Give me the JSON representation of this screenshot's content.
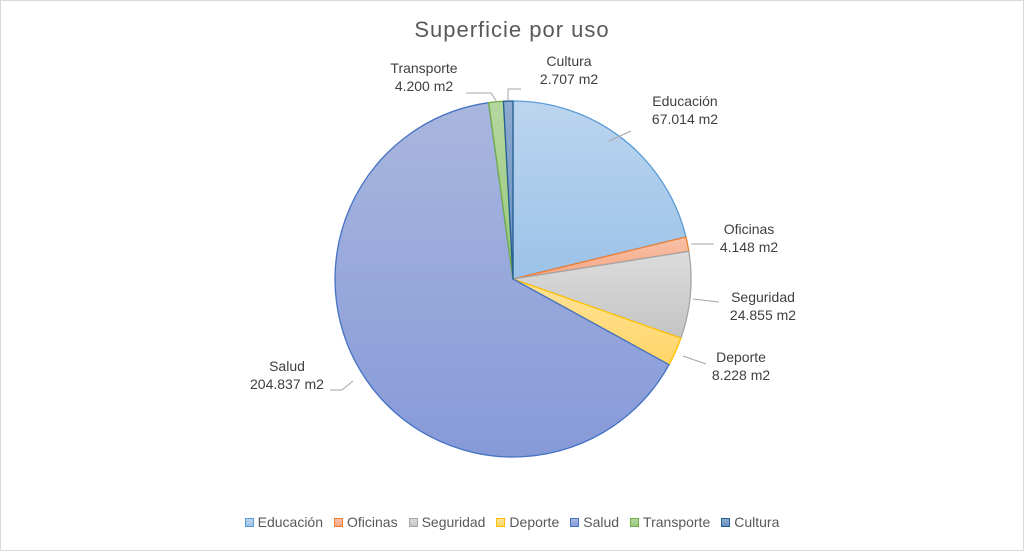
{
  "chart_data": {
    "type": "pie",
    "title": "Superficie por uso",
    "unit": "m2",
    "categories": [
      "Educación",
      "Oficinas",
      "Seguridad",
      "Deporte",
      "Salud",
      "Transporte",
      "Cultura"
    ],
    "values": [
      67014,
      4148,
      24855,
      8228,
      204837,
      4200,
      2707
    ],
    "data_labels": [
      "67.014 m2",
      "4.148 m2",
      "24.855 m2",
      "8.228 m2",
      "204.837 m2",
      "4.200 m2",
      "2.707 m2"
    ],
    "colors": [
      {
        "fill_top": "#bcd5ef",
        "fill_bottom": "#9cc2e8",
        "stroke": "#5b9bd5"
      },
      {
        "fill_top": "#f8c1a7",
        "fill_bottom": "#f4a784",
        "stroke": "#ed7d31"
      },
      {
        "fill_top": "#dcdcdc",
        "fill_bottom": "#c4c4c4",
        "stroke": "#a5a5a5"
      },
      {
        "fill_top": "#ffe39a",
        "fill_bottom": "#ffd566",
        "stroke": "#ffc000"
      },
      {
        "fill_top": "#a9b6de",
        "fill_bottom": "#869ad8",
        "stroke": "#4472c4"
      },
      {
        "fill_top": "#b5d7a0",
        "fill_bottom": "#99c97c",
        "stroke": "#70ad47"
      },
      {
        "fill_top": "#8eaad0",
        "fill_bottom": "#6b8fbf",
        "stroke": "#255e91"
      }
    ],
    "legend_position": "bottom"
  }
}
